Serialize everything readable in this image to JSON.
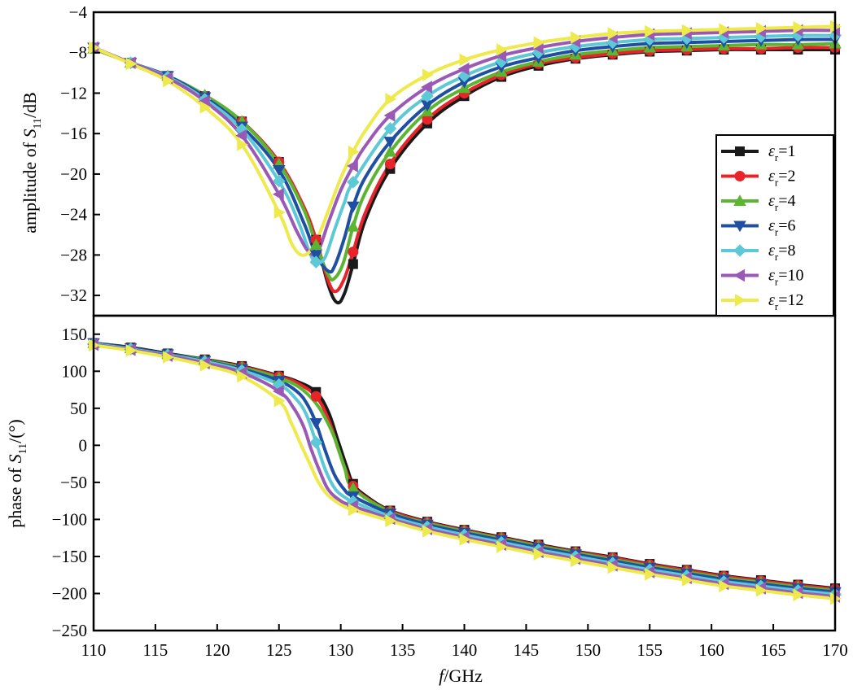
{
  "chart_data": [
    {
      "type": "line",
      "panel": "top",
      "ylabel": "amplitude of S11/dB",
      "ylabel_parts": {
        "prefix": "amplitude of ",
        "symbol": "S",
        "sub": "11",
        "suffix": "/dB"
      },
      "xlim": [
        110,
        170
      ],
      "ylim": [
        -34,
        -4
      ],
      "yticks": [
        "−32",
        "−28",
        "−24",
        "−20",
        "−16",
        "−12",
        "−8",
        "−4"
      ],
      "ytick_values": [
        -32,
        -28,
        -24,
        -20,
        -16,
        -12,
        -8,
        -4
      ],
      "legend_position": "center-right",
      "series": [
        {
          "name": "εr=1",
          "label": {
            "symbol": "ε",
            "sub": "r",
            "value": "=1"
          },
          "color": "#1a1a1a",
          "marker": "square",
          "x": [
            110,
            113,
            116,
            119,
            122,
            125,
            127,
            128,
            129,
            129.7,
            130.3,
            131,
            132,
            134,
            137,
            140,
            143,
            146,
            149,
            152,
            155,
            158,
            161,
            164,
            167,
            170
          ],
          "y": [
            -7.6,
            -9.0,
            -10.3,
            -12.3,
            -14.8,
            -18.8,
            -23.3,
            -26.5,
            -31.0,
            -32.7,
            -31.8,
            -28.9,
            -24.5,
            -19.5,
            -15.0,
            -12.3,
            -10.4,
            -9.3,
            -8.6,
            -8.2,
            -7.9,
            -7.8,
            -7.7,
            -7.7,
            -7.7,
            -7.7
          ]
        },
        {
          "name": "εr=2",
          "label": {
            "symbol": "ε",
            "sub": "r",
            "value": "=2"
          },
          "color": "#e8232a",
          "marker": "circle",
          "x": [
            110,
            113,
            116,
            119,
            122,
            125,
            127,
            128,
            129,
            129.6,
            130.3,
            131,
            132,
            134,
            137,
            140,
            143,
            146,
            149,
            152,
            155,
            158,
            161,
            164,
            167,
            170
          ],
          "y": [
            -7.6,
            -9.0,
            -10.3,
            -12.3,
            -14.8,
            -18.8,
            -23.2,
            -26.5,
            -30.6,
            -31.6,
            -30.3,
            -27.7,
            -23.8,
            -19.0,
            -14.6,
            -12.0,
            -10.2,
            -9.1,
            -8.5,
            -8.1,
            -7.8,
            -7.7,
            -7.6,
            -7.6,
            -7.5,
            -7.5
          ]
        },
        {
          "name": "εr=4",
          "label": {
            "symbol": "ε",
            "sub": "r",
            "value": "=4"
          },
          "color": "#5cb531",
          "marker": "triangle-up",
          "x": [
            110,
            113,
            116,
            119,
            122,
            125,
            127,
            128,
            129,
            129.5,
            130.2,
            131,
            132,
            134,
            137,
            140,
            143,
            146,
            149,
            152,
            155,
            158,
            161,
            164,
            167,
            170
          ],
          "y": [
            -7.6,
            -9.0,
            -10.3,
            -12.2,
            -14.8,
            -19.0,
            -23.5,
            -27.0,
            -30.0,
            -30.3,
            -28.8,
            -25.2,
            -21.8,
            -17.8,
            -13.8,
            -11.5,
            -9.9,
            -8.9,
            -8.2,
            -7.8,
            -7.5,
            -7.4,
            -7.3,
            -7.2,
            -7.2,
            -7.1
          ]
        },
        {
          "name": "εr=6",
          "label": {
            "symbol": "ε",
            "sub": "r",
            "value": "=6"
          },
          "color": "#1f4fa3",
          "marker": "triangle-down",
          "x": [
            110,
            113,
            116,
            119,
            122,
            125,
            127,
            128,
            129,
            129.5,
            130.3,
            131,
            132,
            134,
            137,
            140,
            143,
            146,
            149,
            152,
            155,
            158,
            161,
            164,
            167,
            170
          ],
          "y": [
            -7.5,
            -9.0,
            -10.3,
            -12.4,
            -15.3,
            -19.6,
            -24.8,
            -28.0,
            -29.6,
            -29.1,
            -26.3,
            -23.2,
            -20.3,
            -16.8,
            -13.2,
            -10.9,
            -9.4,
            -8.5,
            -7.8,
            -7.4,
            -7.1,
            -7.0,
            -6.9,
            -6.8,
            -6.7,
            -6.7
          ]
        },
        {
          "name": "εr=8",
          "label": {
            "symbol": "ε",
            "sub": "r",
            "value": "=8"
          },
          "color": "#5dc8d6",
          "marker": "diamond",
          "x": [
            110,
            113,
            116,
            119,
            122,
            125,
            126.5,
            127.5,
            128,
            128.7,
            129.5,
            130.3,
            131,
            134,
            137,
            140,
            143,
            146,
            149,
            152,
            155,
            158,
            161,
            164,
            167,
            170
          ],
          "y": [
            -7.5,
            -9.0,
            -10.4,
            -12.6,
            -15.6,
            -20.7,
            -24.5,
            -27.8,
            -28.7,
            -28.3,
            -25.5,
            -22.8,
            -20.8,
            -15.5,
            -12.3,
            -10.3,
            -8.9,
            -8.0,
            -7.4,
            -7.0,
            -6.7,
            -6.6,
            -6.5,
            -6.4,
            -6.3,
            -6.3
          ]
        },
        {
          "name": "εr=10",
          "label": {
            "symbol": "ε",
            "sub": "r",
            "value": "=10"
          },
          "color": "#9b59b6",
          "marker": "triangle-left",
          "x": [
            110,
            113,
            116,
            119,
            122,
            125,
            126.5,
            127.5,
            128.2,
            129,
            130,
            131,
            132,
            134,
            137,
            140,
            143,
            146,
            149,
            152,
            155,
            158,
            161,
            164,
            167,
            170
          ],
          "y": [
            -7.5,
            -9.0,
            -10.5,
            -12.8,
            -16.2,
            -22.0,
            -25.8,
            -27.8,
            -27.5,
            -24.8,
            -21.6,
            -19.2,
            -17.2,
            -14.2,
            -11.4,
            -9.6,
            -8.3,
            -7.5,
            -6.9,
            -6.5,
            -6.2,
            -6.1,
            -6.0,
            -5.9,
            -5.8,
            -5.8
          ]
        },
        {
          "name": "εr=12",
          "label": {
            "symbol": "ε",
            "sub": "r",
            "value": "=12"
          },
          "color": "#eeea4c",
          "marker": "triangle-right",
          "x": [
            110,
            113,
            116,
            119,
            122,
            125,
            126,
            126.8,
            127.6,
            128.3,
            129,
            130,
            131,
            132,
            134,
            137,
            140,
            143,
            146,
            149,
            152,
            155,
            158,
            161,
            164,
            167,
            170
          ],
          "y": [
            -7.5,
            -9.1,
            -10.8,
            -13.4,
            -17.1,
            -23.8,
            -26.8,
            -28.0,
            -27.5,
            -25.8,
            -23.6,
            -20.4,
            -17.8,
            -15.7,
            -12.6,
            -10.2,
            -8.7,
            -7.7,
            -7.0,
            -6.5,
            -6.1,
            -5.9,
            -5.8,
            -5.7,
            -5.6,
            -5.5,
            -5.4
          ]
        }
      ]
    },
    {
      "type": "line",
      "panel": "bottom",
      "ylabel": "phase of S11/(°)",
      "ylabel_parts": {
        "prefix": "phase of ",
        "symbol": "S",
        "sub": "11",
        "suffix": "/(°)"
      },
      "xlabel": "f/GHz",
      "xlabel_parts": {
        "symbol": "f",
        "suffix": "/GHz"
      },
      "xlim": [
        110,
        170
      ],
      "ylim": [
        -250,
        175
      ],
      "xticks": [
        "110",
        "115",
        "120",
        "125",
        "130",
        "135",
        "140",
        "145",
        "150",
        "155",
        "160",
        "165",
        "170"
      ],
      "xtick_values": [
        110,
        115,
        120,
        125,
        130,
        135,
        140,
        145,
        150,
        155,
        160,
        165,
        170
      ],
      "yticks": [
        "150",
        "100",
        "50",
        "0",
        "−50",
        "−100",
        "−150",
        "−200",
        "−250"
      ],
      "ytick_values": [
        150,
        100,
        50,
        0,
        -50,
        -100,
        -150,
        -200,
        -250
      ],
      "series": [
        {
          "name": "εr=1",
          "color": "#1a1a1a",
          "marker": "square",
          "x": [
            110,
            113,
            116,
            119,
            122,
            125,
            126.5,
            128,
            129,
            129.8,
            130.5,
            131,
            132,
            134,
            137,
            140,
            143,
            146,
            149,
            152,
            155,
            158,
            161,
            164,
            167,
            170
          ],
          "y": [
            138,
            132,
            124,
            116,
            107,
            94,
            86,
            72,
            45,
            5,
            -30,
            -52,
            -68,
            -88,
            -103,
            -114,
            -124,
            -134,
            -143,
            -151,
            -160,
            -168,
            -176,
            -182,
            -188,
            -193
          ]
        },
        {
          "name": "εr=2",
          "color": "#e8232a",
          "marker": "circle",
          "x": [
            110,
            113,
            116,
            119,
            122,
            125,
            126.5,
            128,
            129,
            129.8,
            130.5,
            131,
            132,
            134,
            137,
            140,
            143,
            146,
            149,
            152,
            155,
            158,
            161,
            164,
            167,
            170
          ],
          "y": [
            137,
            131,
            123,
            115,
            106,
            93,
            84,
            66,
            35,
            -5,
            -38,
            -55,
            -70,
            -89,
            -104,
            -115,
            -125,
            -135,
            -144,
            -152,
            -161,
            -169,
            -177,
            -183,
            -189,
            -194
          ]
        },
        {
          "name": "εr=4",
          "color": "#5cb531",
          "marker": "triangle-up",
          "x": [
            110,
            113,
            116,
            119,
            122,
            125,
            126.5,
            127.5,
            128.2,
            128.8,
            129.5,
            130.3,
            131,
            134,
            137,
            140,
            143,
            146,
            149,
            152,
            155,
            158,
            161,
            164,
            167,
            170
          ],
          "y": [
            138,
            131,
            123,
            115,
            105,
            91,
            80,
            66,
            52,
            35,
            10,
            -30,
            -58,
            -90,
            -105,
            -116,
            -126,
            -136,
            -145,
            -154,
            -163,
            -171,
            -179,
            -185,
            -191,
            -196
          ]
        },
        {
          "name": "εr=6",
          "color": "#1f4fa3",
          "marker": "triangle-down",
          "x": [
            110,
            113,
            116,
            119,
            122,
            125,
            126.5,
            127.3,
            128,
            128.7,
            129.5,
            130.3,
            131,
            134,
            137,
            140,
            143,
            146,
            149,
            152,
            155,
            158,
            161,
            164,
            167,
            170
          ],
          "y": [
            138,
            131,
            123,
            114,
            103,
            87,
            72,
            55,
            30,
            -5,
            -40,
            -60,
            -69,
            -92,
            -107,
            -118,
            -128,
            -138,
            -147,
            -156,
            -165,
            -173,
            -181,
            -187,
            -193,
            -198
          ]
        },
        {
          "name": "εr=8",
          "color": "#5dc8d6",
          "marker": "diamond",
          "x": [
            110,
            113,
            116,
            119,
            122,
            125,
            126.3,
            127.2,
            128,
            128.8,
            129.6,
            130.5,
            131,
            134,
            137,
            140,
            143,
            146,
            149,
            152,
            155,
            158,
            161,
            164,
            167,
            170
          ],
          "y": [
            137,
            130,
            122,
            113,
            101,
            82,
            64,
            42,
            4,
            -35,
            -60,
            -72,
            -76,
            -96,
            -110,
            -121,
            -131,
            -141,
            -150,
            -159,
            -168,
            -176,
            -184,
            -190,
            -196,
            -201
          ]
        },
        {
          "name": "εr=10",
          "color": "#9b59b6",
          "marker": "triangle-left",
          "x": [
            110,
            113,
            116,
            119,
            122,
            125,
            126.2,
            127,
            127.6,
            128.3,
            129,
            130,
            131,
            134,
            137,
            140,
            143,
            146,
            149,
            152,
            155,
            158,
            161,
            164,
            167,
            170
          ],
          "y": [
            136,
            129,
            121,
            111,
            98,
            73,
            50,
            25,
            -5,
            -35,
            -60,
            -75,
            -82,
            -99,
            -113,
            -124,
            -134,
            -144,
            -153,
            -162,
            -171,
            -179,
            -187,
            -193,
            -199,
            -204
          ]
        },
        {
          "name": "εr=12",
          "color": "#eeea4c",
          "marker": "triangle-right",
          "x": [
            110,
            113,
            116,
            119,
            122,
            125,
            126,
            126.8,
            127.5,
            128.2,
            129,
            130,
            131,
            134,
            137,
            140,
            143,
            146,
            149,
            152,
            155,
            158,
            161,
            164,
            167,
            170
          ],
          "y": [
            135,
            128,
            119,
            108,
            93,
            60,
            30,
            0,
            -25,
            -50,
            -68,
            -80,
            -87,
            -102,
            -116,
            -127,
            -137,
            -147,
            -156,
            -165,
            -174,
            -182,
            -190,
            -196,
            -202,
            -207
          ]
        }
      ]
    }
  ]
}
